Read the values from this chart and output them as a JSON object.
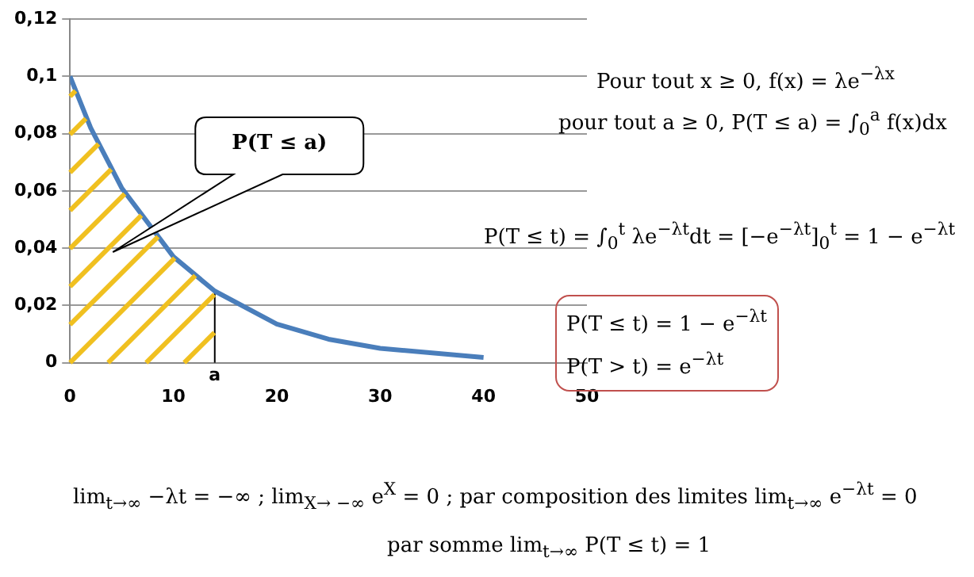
{
  "chart_data": {
    "type": "line",
    "x": [
      0,
      2,
      5,
      10,
      14,
      20,
      25,
      30,
      40
    ],
    "series": [
      {
        "color": "#4a7ebb",
        "values": [
          0.1,
          0.082,
          0.061,
          0.037,
          0.025,
          0.0135,
          0.0082,
          0.005,
          0.0018
        ]
      }
    ],
    "xlim": [
      0,
      50
    ],
    "xticks": [
      0,
      10,
      20,
      30,
      40,
      50
    ],
    "ylim": [
      0,
      0.12
    ],
    "yticks": [
      {
        "value": 0,
        "label": "0"
      },
      {
        "value": 0.02,
        "label": "0,02"
      },
      {
        "value": 0.04,
        "label": "0,04"
      },
      {
        "value": 0.06,
        "label": "0,06"
      },
      {
        "value": 0.08,
        "label": "0,08"
      },
      {
        "value": 0.1,
        "label": "0,1"
      },
      {
        "value": 0.12,
        "label": "0,12"
      }
    ],
    "grid": "y",
    "legend": false,
    "marker": "none",
    "line_style": "solid",
    "ref_lines": [
      {
        "axis": "x",
        "value": 14,
        "label": "a",
        "color": "#000000"
      }
    ],
    "annotations": [
      "Pour tout x ≥ 0, f(x) = λe$^{−λx}$",
      "pour tout a ≥ 0, P(T ≤ a) = ∫$_{0}$$^{a}$ f(x)dx",
      "P(T ≤ t) = ∫$_{0}$$^{t}$ λe$^{−λt}$dt = [−e$^{−λt}$]$_{0}$$^{t}$ = 1 − e$^{−λt}$",
      "P(T ≤ t) = 1 − e$^{−λt}$",
      "P(T > t) = e$^{−λt}$",
      "lim$_{t→∞}$ −λt = −∞ ; lim$_{X→ −∞}$ e$^{X}$ = 0 ; par composition des limites   lim$_{t→∞}$ e$^{−λt}$ = 0",
      "par somme lim$_{t→∞}$ P(T ≤ t) = 1",
      "P(T ≤ a)"
    ]
  }
}
